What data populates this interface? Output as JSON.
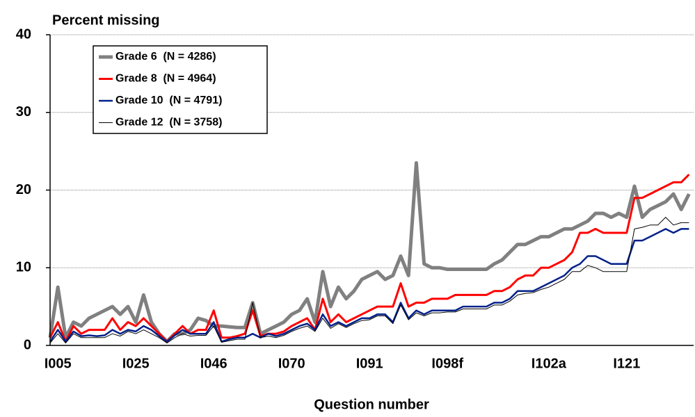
{
  "chart_data": {
    "type": "line",
    "title": "Percent missing",
    "x_label": "Question number",
    "categories": [
      null,
      "I005",
      null,
      null,
      null,
      null,
      null,
      null,
      null,
      null,
      null,
      "I025",
      null,
      null,
      null,
      null,
      null,
      null,
      null,
      null,
      null,
      "I046",
      null,
      null,
      null,
      null,
      null,
      null,
      null,
      null,
      null,
      "I070",
      null,
      null,
      null,
      null,
      null,
      null,
      null,
      null,
      null,
      "I091",
      null,
      null,
      null,
      null,
      null,
      null,
      null,
      null,
      null,
      "I098f",
      null,
      null,
      null,
      null,
      null,
      null,
      null,
      null,
      null,
      null,
      null,
      null,
      "I102a",
      null,
      null,
      null,
      null,
      null,
      null,
      null,
      null,
      null,
      "I121",
      null,
      null,
      null,
      null,
      null,
      null,
      null,
      null
    ],
    "series": [
      {
        "name": "Grade 6  (N = 4286)",
        "color": "#808080",
        "width": 5,
        "values": [
          1,
          7.5,
          1,
          3,
          2.5,
          3.5,
          4,
          4.5,
          5,
          4,
          5,
          3,
          6.5,
          3,
          1.5,
          0.5,
          1.5,
          1.5,
          2,
          3.5,
          3.2,
          2.5,
          2.5,
          2.4,
          2.3,
          2.3,
          5.5,
          1.5,
          2,
          2.5,
          3,
          4,
          4.5,
          6,
          3,
          9.5,
          5,
          7.5,
          6,
          7,
          8.5,
          9,
          9.5,
          8.5,
          9,
          11.5,
          9,
          23.5,
          10.5,
          10,
          10,
          9.8,
          9.8,
          9.8,
          9.8,
          9.8,
          9.8,
          10.5,
          11,
          12,
          13,
          13,
          13.5,
          14,
          14,
          14.5,
          15,
          15,
          15.5,
          16,
          17,
          17,
          16.5,
          17,
          16.5,
          20.5,
          16.5,
          17.5,
          18,
          18.5,
          19.5,
          17.5,
          19.5
        ]
      },
      {
        "name": "Grade 8  (N = 4964)",
        "color": "#ff0000",
        "width": 3,
        "values": [
          1,
          3,
          0.5,
          2.5,
          1.5,
          2,
          2,
          2,
          3.5,
          2,
          3,
          2.5,
          3.5,
          2.5,
          1.5,
          0.5,
          1.5,
          2.5,
          1.5,
          2,
          2,
          4.5,
          1,
          1,
          1.2,
          1.5,
          4.5,
          1.2,
          1.5,
          1.5,
          1.8,
          2.5,
          3,
          3.5,
          2,
          6,
          3,
          4,
          3,
          3.5,
          4,
          4.5,
          5,
          5,
          5,
          8,
          5,
          5.5,
          5.5,
          6,
          6,
          6,
          6.5,
          6.5,
          6.5,
          6.5,
          6.5,
          7,
          7,
          7.5,
          8.5,
          9,
          9,
          10,
          10,
          10.5,
          11,
          12,
          14.5,
          14.5,
          15,
          14.5,
          14.5,
          14.5,
          14.5,
          19,
          19,
          19.5,
          20,
          20.5,
          21,
          21,
          22
        ]
      },
      {
        "name": "Grade 10  (N = 4791)",
        "color": "#00208a",
        "width": 2.5,
        "values": [
          0.5,
          2,
          0.5,
          1.8,
          1.2,
          1.3,
          1.2,
          1.3,
          2,
          1.5,
          2,
          1.8,
          2.5,
          2,
          1.2,
          0.5,
          1.3,
          2,
          1.5,
          1.5,
          1.5,
          3,
          0.5,
          0.8,
          1,
          1,
          1.5,
          1,
          1.5,
          1.2,
          1.5,
          2,
          2.5,
          2.8,
          2,
          4,
          2.5,
          3,
          2.5,
          3,
          3.5,
          3.5,
          4,
          4,
          3,
          5.5,
          3.5,
          4.5,
          4,
          4.5,
          4.5,
          4.5,
          4.5,
          5,
          5,
          5,
          5,
          5.5,
          5.5,
          6,
          7,
          7,
          7,
          7.5,
          8,
          8.5,
          9,
          10,
          10.5,
          11.5,
          11.5,
          11,
          10.5,
          10.5,
          10.5,
          13.5,
          13.5,
          14,
          14.5,
          15,
          14.5,
          15,
          15
        ]
      },
      {
        "name": "Grade 12  (N = 3758)",
        "color": "#000000",
        "width": 1,
        "values": [
          0.3,
          1.5,
          0.3,
          1.5,
          1,
          1,
          1,
          1,
          1.5,
          1.2,
          1.8,
          1.5,
          2,
          1.5,
          1,
          0.3,
          1,
          1.5,
          1.2,
          1.3,
          1.3,
          2.5,
          0.4,
          0.6,
          0.8,
          0.8,
          5.5,
          1,
          1.2,
          1,
          1.3,
          1.8,
          2.2,
          2.5,
          1.8,
          3.5,
          2.2,
          2.8,
          2.3,
          2.8,
          3.2,
          3.3,
          3.8,
          3.8,
          2.8,
          5.2,
          3.3,
          4.2,
          3.8,
          4.2,
          4.2,
          4.3,
          4.3,
          4.7,
          4.7,
          4.7,
          4.7,
          5.2,
          5.2,
          5.7,
          6.5,
          6.7,
          6.8,
          7.2,
          7.5,
          8,
          8.5,
          9.5,
          9.5,
          10.3,
          10,
          9.5,
          9.5,
          9.5,
          9.5,
          15,
          15.2,
          15.5,
          15.5,
          16.5,
          15.5,
          15.8,
          15.8
        ]
      }
    ],
    "ylim": [
      0,
      40
    ],
    "yticks": [
      0,
      10,
      20,
      30,
      40
    ],
    "grid": true,
    "legend": "upper left"
  }
}
